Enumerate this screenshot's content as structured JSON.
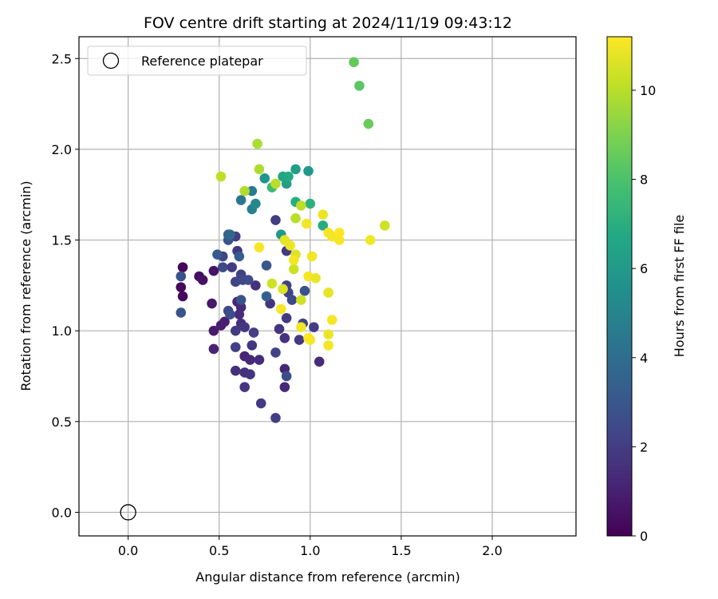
{
  "chart_data": {
    "type": "scatter",
    "title": "FOV centre drift starting at 2024/11/19 09:43:12",
    "xlabel": "Angular distance from reference (arcmin)",
    "ylabel": "Rotation from reference (arcmin)",
    "xlim": [
      -0.27,
      2.46
    ],
    "ylim": [
      -0.13,
      2.62
    ],
    "xticks": [
      0.0,
      0.5,
      1.0,
      1.5,
      2.0
    ],
    "xtick_labels": [
      "0.0",
      "0.5",
      "1.0",
      "1.5",
      "2.0"
    ],
    "yticks": [
      0.0,
      0.5,
      1.0,
      1.5,
      2.0,
      2.5
    ],
    "ytick_labels": [
      "0.0",
      "0.5",
      "1.0",
      "1.5",
      "2.0",
      "2.5"
    ],
    "grid": true,
    "legend": {
      "placement": "top-left",
      "entries": [
        {
          "label": "Reference platepar",
          "marker": "hollow-circle"
        }
      ]
    },
    "reference_point": {
      "x": 0.0,
      "y": 0.0
    },
    "colorbar": {
      "label": "Hours from first FF file",
      "colormap": "viridis",
      "range": [
        0,
        11.2
      ],
      "ticks": [
        0,
        2,
        4,
        6,
        8,
        10
      ],
      "tick_labels": [
        "0",
        "2",
        "4",
        "6",
        "8",
        "10"
      ]
    },
    "series": [
      {
        "fields": [
          "x",
          "y",
          "hours"
        ],
        "points": [
          [
            0.3,
            1.35,
            0.2
          ],
          [
            0.29,
            1.24,
            0.3
          ],
          [
            0.3,
            1.19,
            0.3
          ],
          [
            0.39,
            1.3,
            0.4
          ],
          [
            0.41,
            1.28,
            0.5
          ],
          [
            0.47,
            1.33,
            0.6
          ],
          [
            0.46,
            1.15,
            0.7
          ],
          [
            0.47,
            1.0,
            0.8
          ],
          [
            0.51,
            1.03,
            0.9
          ],
          [
            0.53,
            1.05,
            1.0
          ],
          [
            0.47,
            0.9,
            1.1
          ],
          [
            0.6,
            1.16,
            1.2
          ],
          [
            0.62,
            1.13,
            1.3
          ],
          [
            0.61,
            1.09,
            1.4
          ],
          [
            0.62,
            1.04,
            1.5
          ],
          [
            0.7,
            1.25,
            1.6
          ],
          [
            0.78,
            1.15,
            1.7
          ],
          [
            0.64,
            1.02,
            1.8
          ],
          [
            0.59,
            1.0,
            1.9
          ],
          [
            0.69,
            0.99,
            2.0
          ],
          [
            0.59,
            0.91,
            2.1
          ],
          [
            0.64,
            0.86,
            1.2
          ],
          [
            0.67,
            0.84,
            1.3
          ],
          [
            0.72,
            0.84,
            1.4
          ],
          [
            0.59,
            0.78,
            1.5
          ],
          [
            0.64,
            0.77,
            1.6
          ],
          [
            0.67,
            0.76,
            1.7
          ],
          [
            0.64,
            0.69,
            1.8
          ],
          [
            0.73,
            0.6,
            1.9
          ],
          [
            0.81,
            0.52,
            2.0
          ],
          [
            0.86,
            0.69,
            1.3
          ],
          [
            0.86,
            0.79,
            1.2
          ],
          [
            0.86,
            0.96,
            1.6
          ],
          [
            0.83,
            1.01,
            1.7
          ],
          [
            0.87,
            1.07,
            1.9
          ],
          [
            0.81,
            0.88,
            2.2
          ],
          [
            0.87,
            0.75,
            2.6
          ],
          [
            0.68,
            0.92,
            1.8
          ],
          [
            1.05,
            0.83,
            1.4
          ],
          [
            0.94,
            0.95,
            1.9
          ],
          [
            0.96,
            1.04,
            2.2
          ],
          [
            1.02,
            1.02,
            2.0
          ],
          [
            0.88,
            1.21,
            2.3
          ],
          [
            0.87,
            1.25,
            2.2
          ],
          [
            0.9,
            1.17,
            2.4
          ],
          [
            0.97,
            1.22,
            2.8
          ],
          [
            0.81,
            1.61,
            2.0
          ],
          [
            0.87,
            1.44,
            1.9
          ],
          [
            0.59,
            1.52,
            2.0
          ],
          [
            0.6,
            1.44,
            1.8
          ],
          [
            0.57,
            1.35,
            1.9
          ],
          [
            0.59,
            1.27,
            2.3
          ],
          [
            0.62,
            1.31,
            2.1
          ],
          [
            0.63,
            1.28,
            2.4
          ],
          [
            0.66,
            1.28,
            2.6
          ],
          [
            0.55,
            1.11,
            2.5
          ],
          [
            0.56,
            1.09,
            2.7
          ],
          [
            0.62,
            1.17,
            2.9
          ],
          [
            0.52,
            1.41,
            2.3
          ],
          [
            0.52,
            1.35,
            2.5
          ],
          [
            0.29,
            1.3,
            2.8
          ],
          [
            0.29,
            1.1,
            2.9
          ],
          [
            0.49,
            1.42,
            3.1
          ],
          [
            0.55,
            1.5,
            2.9
          ],
          [
            0.61,
            1.41,
            3.3
          ],
          [
            0.76,
            1.36,
            3.0
          ],
          [
            0.76,
            1.19,
            3.4
          ],
          [
            0.56,
            1.53,
            4.0
          ],
          [
            0.55,
            1.53,
            3.6
          ],
          [
            0.62,
            1.72,
            4.4
          ],
          [
            0.68,
            1.77,
            4.6
          ],
          [
            0.68,
            1.67,
            4.9
          ],
          [
            0.7,
            1.7,
            5.2
          ],
          [
            0.75,
            1.84,
            5.8
          ],
          [
            0.84,
            1.53,
            6.0
          ],
          [
            0.87,
            1.81,
            6.3
          ],
          [
            0.85,
            1.85,
            6.6
          ],
          [
            0.88,
            1.85,
            6.8
          ],
          [
            0.92,
            1.89,
            6.2
          ],
          [
            0.99,
            1.88,
            6.0
          ],
          [
            0.92,
            1.71,
            6.9
          ],
          [
            1.0,
            1.7,
            7.1
          ],
          [
            1.07,
            1.58,
            6.9
          ],
          [
            0.79,
            1.79,
            7.6
          ],
          [
            1.24,
            2.48,
            8.5
          ],
          [
            1.27,
            2.35,
            8.3
          ],
          [
            1.32,
            2.14,
            8.6
          ],
          [
            0.71,
            2.03,
            9.8
          ],
          [
            0.51,
            1.85,
            10.1
          ],
          [
            0.64,
            1.77,
            9.9
          ],
          [
            0.72,
            1.89,
            9.8
          ],
          [
            0.81,
            1.81,
            10.0
          ],
          [
            0.95,
            1.69,
            10.1
          ],
          [
            0.92,
            1.62,
            10.0
          ],
          [
            0.91,
            1.34,
            10.3
          ],
          [
            0.79,
            1.26,
            10.4
          ],
          [
            0.85,
            1.23,
            10.6
          ],
          [
            0.95,
            1.17,
            10.4
          ],
          [
            1.41,
            1.58,
            10.4
          ],
          [
            0.86,
            1.5,
            10.8
          ],
          [
            0.89,
            1.47,
            10.9
          ],
          [
            0.92,
            1.42,
            10.7
          ],
          [
            0.91,
            1.39,
            11.0
          ],
          [
            0.72,
            1.46,
            11.1
          ],
          [
            0.98,
            1.59,
            11.0
          ],
          [
            1.07,
            1.64,
            10.9
          ],
          [
            1.1,
            1.54,
            11.1
          ],
          [
            1.12,
            1.52,
            11.0
          ],
          [
            1.16,
            1.54,
            11.2
          ],
          [
            1.16,
            1.5,
            11.1
          ],
          [
            1.33,
            1.5,
            11.0
          ],
          [
            0.99,
            1.3,
            11.1
          ],
          [
            1.01,
            1.41,
            11.0
          ],
          [
            1.03,
            1.29,
            10.9
          ],
          [
            1.1,
            1.21,
            10.8
          ],
          [
            0.84,
            1.12,
            11.1
          ],
          [
            0.95,
            1.02,
            11.0
          ],
          [
            0.99,
            0.96,
            11.2
          ],
          [
            1.0,
            0.95,
            11.1
          ],
          [
            1.1,
            0.98,
            10.9
          ],
          [
            1.1,
            0.92,
            11.0
          ],
          [
            1.12,
            1.06,
            11.1
          ]
        ]
      }
    ]
  }
}
